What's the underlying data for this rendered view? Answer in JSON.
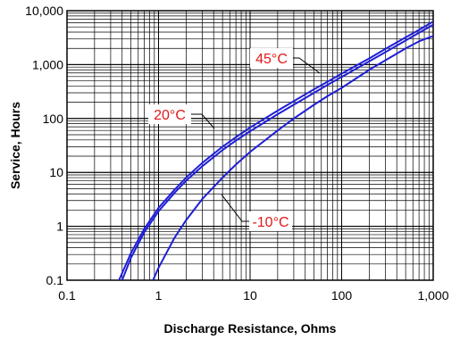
{
  "chart_data": {
    "type": "line",
    "title": "",
    "xlabel": "Discharge Resistance, Ohms",
    "ylabel": "Service, Hours",
    "x_scale": "log",
    "y_scale": "log",
    "xlim": [
      0.1,
      1000
    ],
    "ylim": [
      0.1,
      10000
    ],
    "grid": true,
    "x_tick_labels": [
      "0.1",
      "1",
      "10",
      "100",
      "1,000"
    ],
    "y_tick_labels": [
      "0.1",
      "1",
      "10",
      "100",
      "1,000",
      "10,000"
    ],
    "series": [
      {
        "name": "45°C",
        "color": "#1f1fd6",
        "x": [
          0.37,
          0.5,
          0.7,
          1,
          1.5,
          2,
          3,
          5,
          7,
          10,
          20,
          30,
          50,
          70,
          100,
          200,
          300,
          500,
          700,
          1000
        ],
        "y": [
          0.1,
          0.32,
          0.9,
          2.2,
          4.8,
          8,
          15,
          30,
          45,
          68,
          140,
          210,
          350,
          480,
          680,
          1300,
          1950,
          3200,
          4400,
          6300
        ]
      },
      {
        "name": "20°C",
        "color": "#1f1fd6",
        "x": [
          0.4,
          0.5,
          0.7,
          1,
          1.5,
          2,
          3,
          5,
          7,
          10,
          20,
          30,
          50,
          70,
          100,
          200,
          300,
          500,
          700,
          1000
        ],
        "y": [
          0.1,
          0.26,
          0.78,
          1.9,
          4.2,
          7,
          13,
          26,
          39,
          58,
          120,
          180,
          300,
          420,
          590,
          1150,
          1700,
          2800,
          3900,
          5500
        ]
      },
      {
        "name": "-10°C",
        "color": "#1f1fd6",
        "x": [
          0.87,
          1,
          1.5,
          2,
          3,
          5,
          7,
          10,
          20,
          30,
          50,
          70,
          100,
          200,
          300,
          500,
          700,
          1000
        ],
        "y": [
          0.1,
          0.17,
          0.62,
          1.3,
          3.2,
          8,
          14,
          24,
          60,
          100,
          180,
          260,
          370,
          800,
          1200,
          2000,
          2700,
          3400
        ]
      }
    ]
  }
}
